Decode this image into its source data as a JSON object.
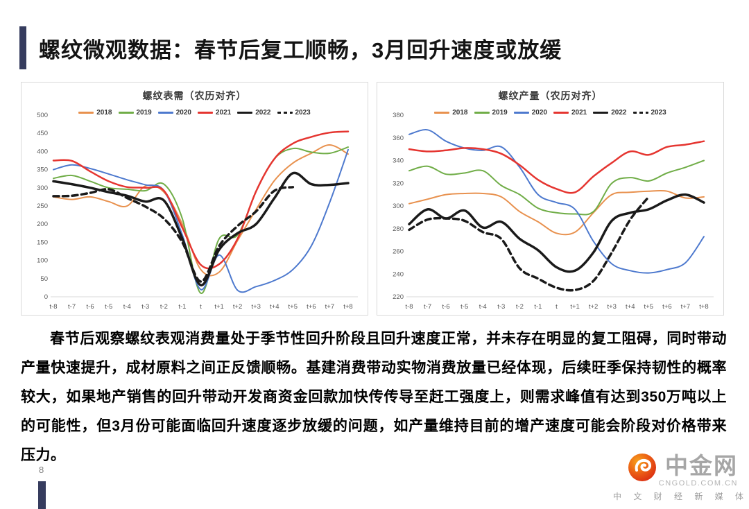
{
  "page": {
    "title": "螺纹微观数据：春节后复工顺畅，3月回升速度或放缓",
    "page_number": "8",
    "accent_color": "#363C5E",
    "paragraph": "春节后观察螺纹表观消费量处于季节性回升阶段且回升速度正常，并未存在明显的复工阻碍，同时带动产量快速提升，成材原料之间正反馈顺畅。基建消费带动实物消费放量已经体现，后续旺季保持韧性的概率较大，如果地产销售的回升带动开发商资金回款加快传传导至赶工强度上，则需求峰值有达到350万吨以上的可能性，但3月份可能面临回升速度逐步放缓的问题，如产量维持目前的增产速度可能会阶段对价格带来压力。"
  },
  "watermark": {
    "brand": "中金网",
    "domain": "CNGOLD.COM.CN",
    "tagline": "中 文 财 经 新 媒 体"
  },
  "chart_data": [
    {
      "type": "line",
      "title": "螺纹表需（农历对齐）",
      "x": [
        "t-8",
        "t-7",
        "t-6",
        "t-5",
        "t-4",
        "t-3",
        "t-2",
        "t-1",
        "t",
        "t+1",
        "t+2",
        "t+3",
        "t+4",
        "t+5",
        "t+6",
        "t+7",
        "t+8"
      ],
      "ylim": [
        0,
        500
      ],
      "yticks": [
        0,
        50,
        100,
        150,
        200,
        250,
        300,
        350,
        400,
        450,
        500
      ],
      "grid": false,
      "legend_position": "top",
      "series": [
        {
          "name": "2018",
          "color": "#E8914E",
          "dash": "solid",
          "width": 2,
          "values": [
            275,
            268,
            275,
            262,
            250,
            305,
            288,
            200,
            75,
            68,
            155,
            240,
            320,
            368,
            395,
            418,
            393
          ]
        },
        {
          "name": "2019",
          "color": "#70AD47",
          "dash": "solid",
          "width": 2,
          "values": [
            326,
            334,
            318,
            300,
            296,
            292,
            310,
            215,
            10,
            160,
            170,
            290,
            380,
            408,
            398,
            395,
            412
          ]
        },
        {
          "name": "2020",
          "color": "#4D79CE",
          "dash": "solid",
          "width": 2,
          "values": [
            350,
            363,
            353,
            338,
            322,
            308,
            292,
            170,
            20,
            115,
            18,
            28,
            45,
            75,
            140,
            260,
            405
          ]
        },
        {
          "name": "2021",
          "color": "#E53530",
          "dash": "solid",
          "width": 2.5,
          "values": [
            375,
            374,
            345,
            318,
            302,
            300,
            292,
            190,
            88,
            90,
            160,
            290,
            380,
            422,
            440,
            452,
            455
          ]
        },
        {
          "name": "2022",
          "color": "#1A1A1A",
          "dash": "solid",
          "width": 3.5,
          "values": [
            318,
            310,
            300,
            288,
            278,
            262,
            265,
            160,
            32,
            130,
            175,
            200,
            272,
            340,
            310,
            308,
            313
          ]
        },
        {
          "name": "2023",
          "color": "#1A1A1A",
          "dash": "dashed",
          "width": 3.5,
          "values": [
            277,
            278,
            286,
            296,
            272,
            248,
            215,
            150,
            42,
            140,
            195,
            235,
            292,
            302,
            null,
            null,
            null
          ]
        }
      ]
    },
    {
      "type": "line",
      "title": "螺纹产量（农历对齐）",
      "x": [
        "t-8",
        "t-7",
        "t-6",
        "t-5",
        "t-4",
        "t-3",
        "t-2",
        "t-1",
        "t",
        "t+1",
        "t+2",
        "t+3",
        "t+4",
        "t+5",
        "t+6",
        "t+7",
        "t+8"
      ],
      "ylim": [
        220,
        380
      ],
      "yticks": [
        220,
        240,
        260,
        280,
        300,
        320,
        340,
        360,
        380
      ],
      "grid": false,
      "legend_position": "top",
      "series": [
        {
          "name": "2018",
          "color": "#E8914E",
          "dash": "solid",
          "width": 2,
          "values": [
            302,
            306,
            310,
            311,
            311,
            308,
            295,
            286,
            276,
            277,
            294,
            310,
            312,
            313,
            313,
            307,
            308
          ]
        },
        {
          "name": "2019",
          "color": "#70AD47",
          "dash": "solid",
          "width": 2,
          "values": [
            331,
            335,
            328,
            329,
            331,
            318,
            310,
            298,
            294,
            293,
            295,
            320,
            325,
            322,
            329,
            334,
            340
          ]
        },
        {
          "name": "2020",
          "color": "#4D79CE",
          "dash": "solid",
          "width": 2,
          "values": [
            363,
            367,
            357,
            351,
            349,
            352,
            334,
            310,
            303,
            297,
            269,
            249,
            243,
            241,
            244,
            250,
            273
          ]
        },
        {
          "name": "2021",
          "color": "#E53530",
          "dash": "solid",
          "width": 2.5,
          "values": [
            350,
            348,
            349,
            351,
            350,
            346,
            336,
            323,
            315,
            312,
            326,
            338,
            348,
            345,
            352,
            354,
            357
          ]
        },
        {
          "name": "2022",
          "color": "#1A1A1A",
          "dash": "solid",
          "width": 3.5,
          "values": [
            284,
            297,
            289,
            296,
            281,
            286,
            271,
            261,
            246,
            243,
            259,
            287,
            294,
            297,
            305,
            310,
            303
          ]
        },
        {
          "name": "2023",
          "color": "#1A1A1A",
          "dash": "dashed",
          "width": 3.5,
          "values": [
            279,
            288,
            289,
            287,
            277,
            271,
            245,
            236,
            228,
            226,
            234,
            259,
            288,
            308,
            null,
            null,
            null
          ]
        }
      ]
    }
  ]
}
